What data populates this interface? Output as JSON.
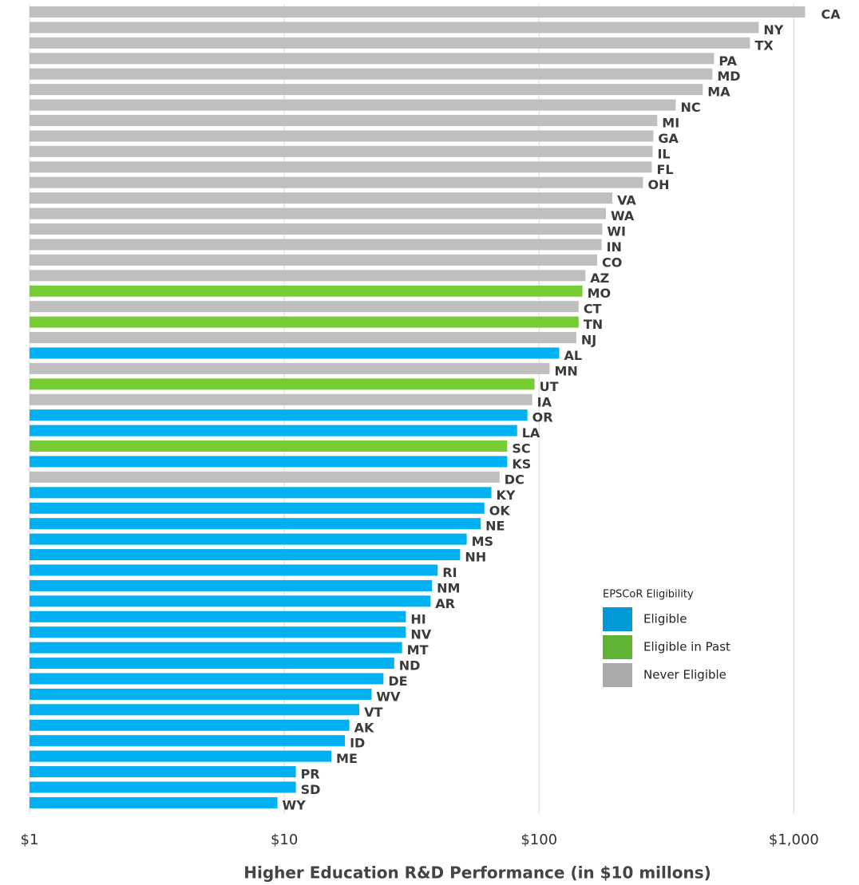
{
  "chart_data": {
    "type": "hbar",
    "x_label": "Higher Education R&D Performance (in $10 millons)",
    "xscale": "log",
    "xlim": [
      1,
      1400
    ],
    "xticks": [
      {
        "value": 1,
        "label": "$1"
      },
      {
        "value": 10,
        "label": "$10"
      },
      {
        "value": 100,
        "label": "$100"
      },
      {
        "value": 1000,
        "label": "$1,000"
      }
    ],
    "grid": true,
    "categories": [
      "CA",
      "NY",
      "TX",
      "PA",
      "MD",
      "MA",
      "NC",
      "MI",
      "GA",
      "IL",
      "FL",
      "OH",
      "VA",
      "WA",
      "WI",
      "IN",
      "CO",
      "AZ",
      "MO",
      "CT",
      "TN",
      "NJ",
      "AL",
      "MN",
      "UT",
      "IA",
      "OR",
      "LA",
      "SC",
      "KS",
      "DC",
      "KY",
      "OK",
      "NE",
      "MS",
      "NH",
      "RI",
      "NM",
      "AR",
      "HI",
      "NV",
      "MT",
      "ND",
      "DE",
      "WV",
      "VT",
      "AK",
      "ID",
      "ME",
      "PR",
      "SD",
      "WY"
    ],
    "values": [
      1107,
      728,
      673,
      486,
      479,
      439,
      344,
      291,
      281,
      279,
      277,
      256,
      194,
      183,
      177,
      176,
      169,
      152,
      148,
      143,
      143,
      140,
      120,
      110,
      96,
      94,
      90,
      82,
      75,
      75,
      70,
      65,
      61,
      59,
      52,
      49,
      40,
      38,
      37.5,
      30,
      30,
      29,
      27,
      24.5,
      22,
      19.7,
      18,
      17.3,
      15.3,
      11.1,
      11.1,
      9.4
    ],
    "colors": [
      "#bfbfbf",
      "#bfbfbf",
      "#bfbfbf",
      "#bfbfbf",
      "#bfbfbf",
      "#bfbfbf",
      "#bfbfbf",
      "#bfbfbf",
      "#bfbfbf",
      "#bfbfbf",
      "#bfbfbf",
      "#bfbfbf",
      "#bfbfbf",
      "#bfbfbf",
      "#bfbfbf",
      "#bfbfbf",
      "#bfbfbf",
      "#bfbfbf",
      "#77cc33",
      "#bfbfbf",
      "#77cc33",
      "#bfbfbf",
      "#00b0f0",
      "#bfbfbf",
      "#77cc33",
      "#bfbfbf",
      "#00b0f0",
      "#00b0f0",
      "#77cc33",
      "#00b0f0",
      "#bfbfbf",
      "#00b0f0",
      "#00b0f0",
      "#00b0f0",
      "#00b0f0",
      "#00b0f0",
      "#00b0f0",
      "#00b0f0",
      "#00b0f0",
      "#00b0f0",
      "#00b0f0",
      "#00b0f0",
      "#00b0f0",
      "#00b0f0",
      "#00b0f0",
      "#00b0f0",
      "#00b0f0",
      "#00b0f0",
      "#00b0f0",
      "#00b0f0",
      "#00b0f0",
      "#00b0f0"
    ],
    "legend": {
      "title": "EPSCoR Eligibility",
      "items": [
        {
          "name": "Eligible",
          "color": "#0099d8"
        },
        {
          "name": "Eligible in Past",
          "color": "#5fb233"
        },
        {
          "name": "Never Eligible",
          "color": "#aaaaaa"
        }
      ]
    }
  }
}
